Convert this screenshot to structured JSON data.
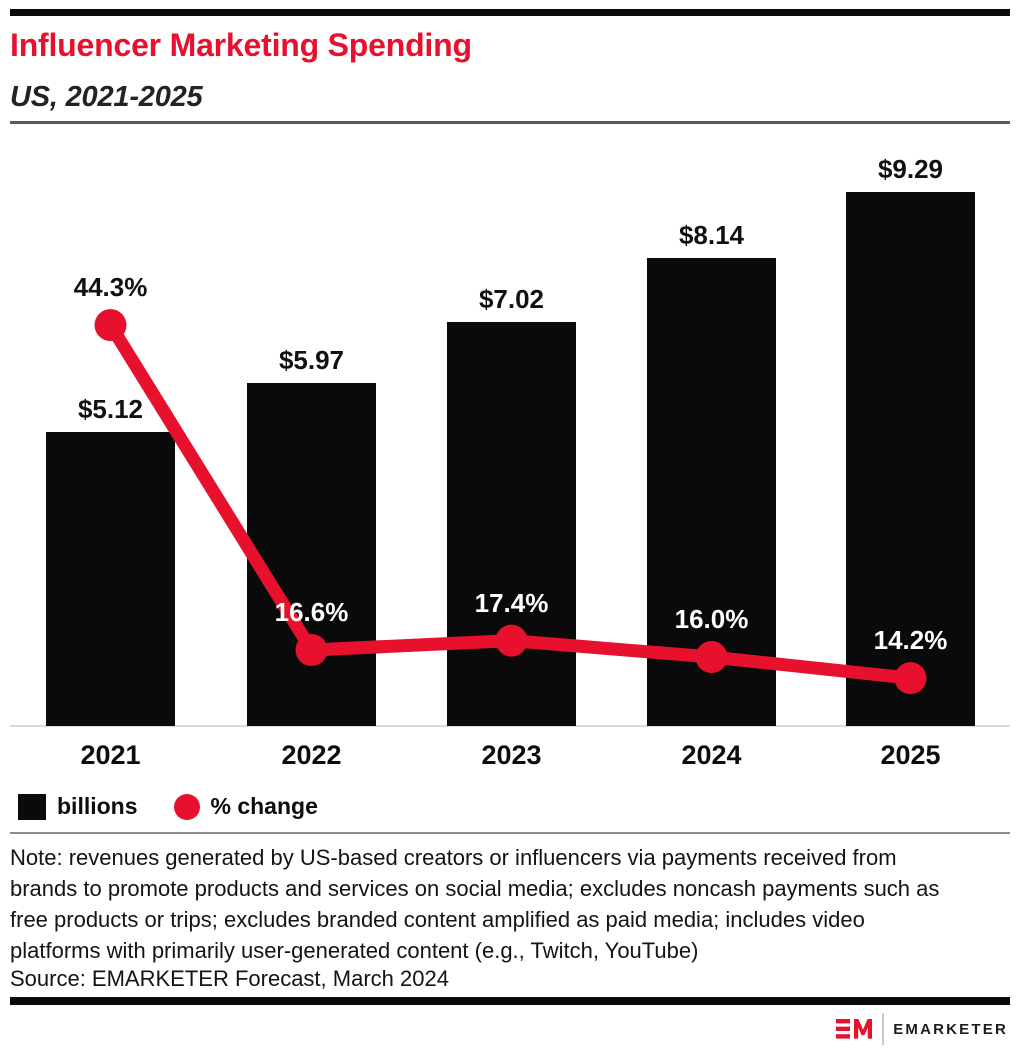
{
  "title": "Influencer Marketing Spending",
  "subtitle": "US, 2021-2025",
  "chart_data": {
    "type": "combo_bar_line",
    "title": "Influencer Marketing Spending",
    "subtitle": "US, 2021-2025",
    "categories": [
      "2021",
      "2022",
      "2023",
      "2024",
      "2025"
    ],
    "series": [
      {
        "name": "billions",
        "type": "bar",
        "color": "#0a0a0a",
        "values": [
          5.12,
          5.97,
          7.02,
          8.14,
          9.29
        ],
        "labels": [
          "$5.12",
          "$5.97",
          "$7.02",
          "$8.14",
          "$9.29"
        ]
      },
      {
        "name": "% change",
        "type": "line",
        "color": "#e8112d",
        "values": [
          44.3,
          16.6,
          17.4,
          16.0,
          14.2
        ],
        "labels": [
          "44.3%",
          "16.6%",
          "17.4%",
          "16.0%",
          "14.2%"
        ],
        "label_colors": [
          "#111111",
          "#ffffff",
          "#ffffff",
          "#ffffff",
          "#ffffff"
        ]
      }
    ],
    "xlabel": "",
    "ylabel": "",
    "grid": false,
    "y_axis_shown": false,
    "legend_position": "bottom-left"
  },
  "legend": {
    "items": [
      {
        "label": "billions",
        "swatch": "square",
        "color": "#0a0a0a"
      },
      {
        "label": "% change",
        "swatch": "circle",
        "color": "#e8112d"
      }
    ]
  },
  "note": {
    "lines": [
      "Note: revenues generated by US-based creators or influencers via payments received from",
      "brands to promote products and services on social media; excludes noncash payments such as",
      "free products or trips; excludes branded content amplified as paid media; includes video",
      "platforms with primarily user-generated content (e.g., Twitch, YouTube)"
    ]
  },
  "source": "Source: EMARKETER Forecast, March 2024",
  "branding": {
    "logo_mark": "EM",
    "logo_text": "EMARKETER",
    "brand_red": "#e8112d"
  }
}
